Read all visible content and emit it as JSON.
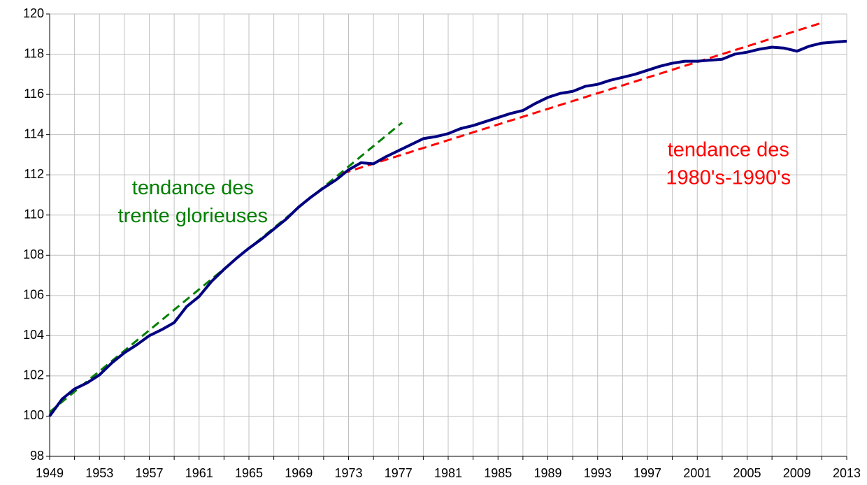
{
  "chart_data": {
    "type": "line",
    "x": [
      1949,
      1950,
      1951,
      1952,
      1953,
      1954,
      1955,
      1956,
      1957,
      1958,
      1959,
      1960,
      1961,
      1962,
      1963,
      1964,
      1965,
      1966,
      1967,
      1968,
      1969,
      1970,
      1971,
      1972,
      1973,
      1974,
      1975,
      1976,
      1977,
      1978,
      1979,
      1980,
      1981,
      1982,
      1983,
      1984,
      1985,
      1986,
      1987,
      1988,
      1989,
      1990,
      1991,
      1992,
      1993,
      1994,
      1995,
      1996,
      1997,
      1998,
      1999,
      2000,
      2001,
      2002,
      2003,
      2004,
      2005,
      2006,
      2007,
      2008,
      2009,
      2010,
      2011,
      2012,
      2013
    ],
    "series": [
      {
        "color": "#000080",
        "values": [
          100.0,
          100.85,
          101.35,
          101.65,
          102.05,
          102.65,
          103.15,
          103.55,
          104.0,
          104.3,
          104.65,
          105.45,
          105.95,
          106.7,
          107.3,
          107.85,
          108.35,
          108.8,
          109.3,
          109.8,
          110.4,
          110.9,
          111.35,
          111.75,
          112.25,
          112.6,
          112.55,
          112.9,
          113.2,
          113.5,
          113.8,
          113.9,
          114.05,
          114.3,
          114.45,
          114.65,
          114.85,
          115.05,
          115.2,
          115.55,
          115.85,
          116.05,
          116.15,
          116.4,
          116.5,
          116.7,
          116.85,
          117.0,
          117.2,
          117.4,
          117.55,
          117.65,
          117.65,
          117.7,
          117.75,
          118.0,
          118.1,
          118.25,
          118.35,
          118.3,
          118.15,
          118.4,
          118.55,
          118.6,
          118.65
        ]
      }
    ],
    "trends": [
      {
        "color": "#008000",
        "x": [
          1949,
          1977.3
        ],
        "values": [
          100.2,
          114.6
        ],
        "label": [
          "tendance des",
          "trente glorieuses"
        ],
        "label_pos": [
          1960.5,
          111.3
        ]
      },
      {
        "color": "#ff0000",
        "x": [
          1972.5,
          2011.1
        ],
        "values": [
          112.07,
          119.58
        ],
        "label": [
          "tendance des",
          "1980's-1990's"
        ],
        "label_pos": [
          2003.5,
          113.2
        ]
      }
    ],
    "xlim": [
      1949,
      2013
    ],
    "xticks": [
      1949,
      1953,
      1957,
      1961,
      1965,
      1969,
      1973,
      1977,
      1981,
      1985,
      1989,
      1993,
      1997,
      2001,
      2005,
      2009,
      2013
    ],
    "xgrid": [
      1951,
      1955,
      1959,
      1963,
      1967,
      1971,
      1975,
      1979,
      1983,
      1987,
      1991,
      1995,
      1999,
      2003,
      2007,
      2011
    ],
    "ylim": [
      98,
      120
    ],
    "yticks": [
      98,
      100,
      102,
      104,
      106,
      108,
      110,
      112,
      114,
      116,
      118,
      120
    ],
    "grid": true
  }
}
